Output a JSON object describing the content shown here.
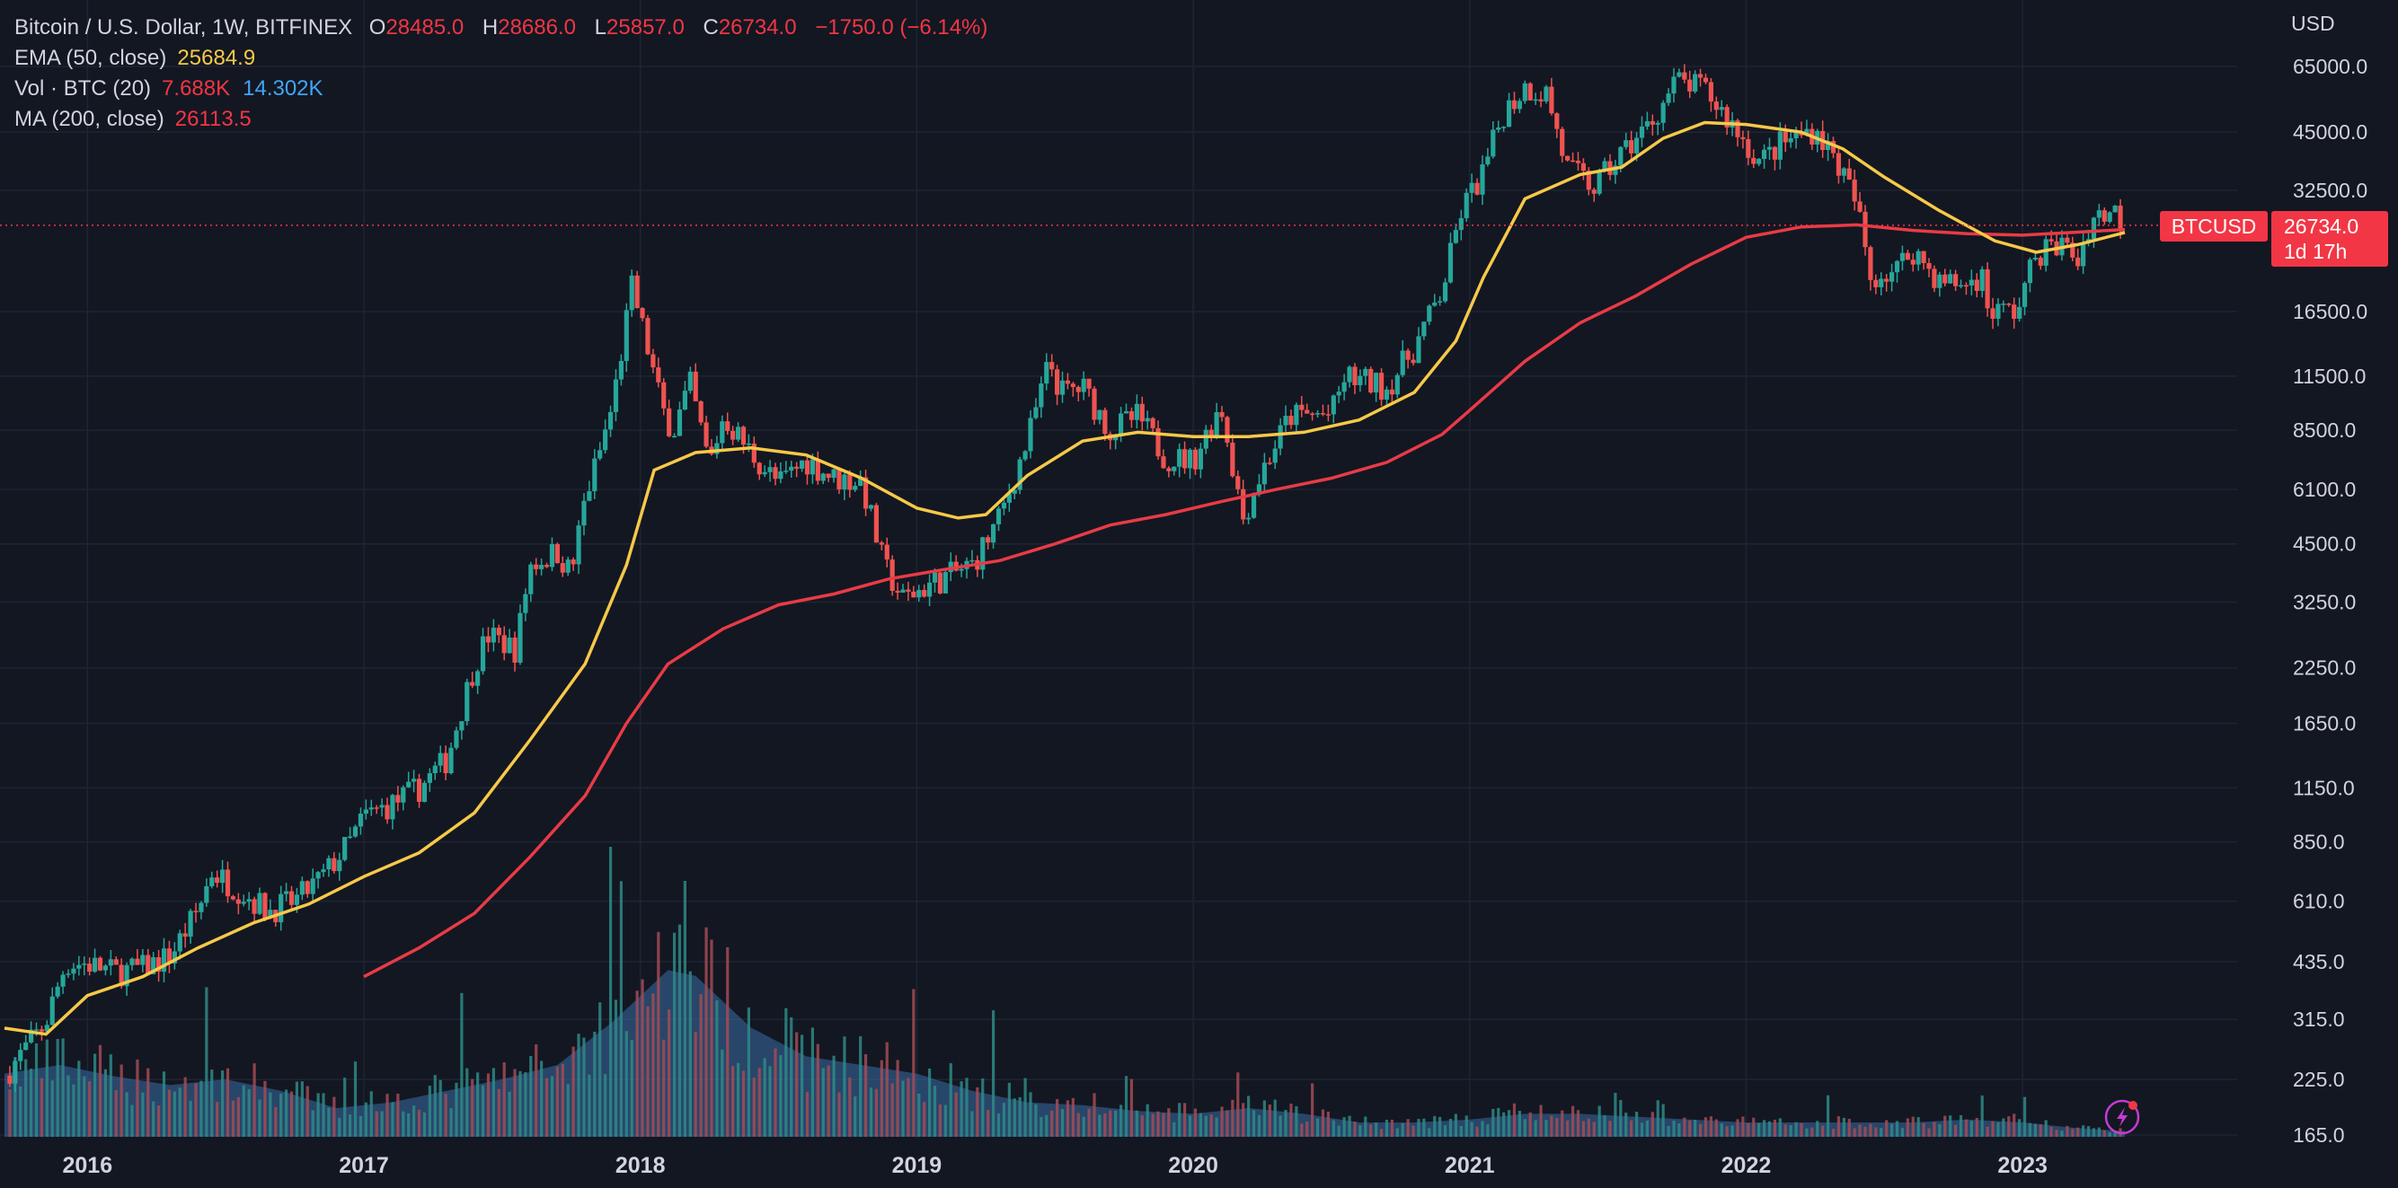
{
  "legend": {
    "title": "Bitcoin / U.S. Dollar, 1W, BITFINEX",
    "open_label": "O",
    "open": "28485.0",
    "high_label": "H",
    "high": "28686.0",
    "low_label": "L",
    "low": "25857.0",
    "close_label": "C",
    "close": "26734.0",
    "change": "−1750.0 (−6.14%)",
    "ema_label": "EMA (50, close)",
    "ema_value": "25684.9",
    "vol_label": "Vol · BTC (20)",
    "vol_value": "7.688K",
    "vol_ma_value": "14.302K",
    "ma_label": "MA (200, close)",
    "ma_value": "26113.5"
  },
  "price_scale": {
    "currency": "USD",
    "symbol_tag": "BTCUSD",
    "last_price": "26734.0",
    "countdown": "1d 17h"
  },
  "colors": {
    "background": "#131722",
    "grid": "#1f2433",
    "up": "#26a69a",
    "down": "#ef5350",
    "ema": "#f7c948",
    "ma": "#e83b46",
    "volume_ma": "#3a6ea5",
    "text": "#d1d4dc",
    "price_tag": "#f23645"
  },
  "icons": {
    "corner": "lightning-icon"
  },
  "chart_data": {
    "type": "candlestick",
    "symbol": "BTCUSD",
    "timeframe": "1W",
    "y_scale": "log",
    "y_ticks": [
      165,
      225,
      315,
      435,
      610,
      850,
      1150,
      1650,
      2250,
      3250,
      4500,
      6100,
      8500,
      11500,
      16500,
      32500,
      45000,
      65000
    ],
    "x_ticks": [
      "2016",
      "2017",
      "2018",
      "2019",
      "2020",
      "2021",
      "2022",
      "2023"
    ],
    "x_tick_years": [
      2016,
      2017,
      2018,
      2019,
      2020,
      2021,
      2022,
      2023
    ],
    "x_range": [
      2015.7,
      2023.37
    ],
    "grid": true,
    "approx_close_path": [
      [
        2015.7,
        230
      ],
      [
        2015.85,
        310
      ],
      [
        2015.92,
        430
      ],
      [
        2016.0,
        430
      ],
      [
        2016.1,
        410
      ],
      [
        2016.2,
        420
      ],
      [
        2016.3,
        450
      ],
      [
        2016.4,
        580
      ],
      [
        2016.45,
        720
      ],
      [
        2016.55,
        650
      ],
      [
        2016.65,
        580
      ],
      [
        2016.75,
        610
      ],
      [
        2016.85,
        700
      ],
      [
        2016.95,
        850
      ],
      [
        2017.0,
        980
      ],
      [
        2017.1,
        1050
      ],
      [
        2017.2,
        1150
      ],
      [
        2017.3,
        1350
      ],
      [
        2017.4,
        2300
      ],
      [
        2017.45,
        2700
      ],
      [
        2017.55,
        2500
      ],
      [
        2017.6,
        4000
      ],
      [
        2017.7,
        4300
      ],
      [
        2017.75,
        3800
      ],
      [
        2017.8,
        5800
      ],
      [
        2017.85,
        7400
      ],
      [
        2017.9,
        9800
      ],
      [
        2017.97,
        19000
      ],
      [
        2018.02,
        14000
      ],
      [
        2018.08,
        9500
      ],
      [
        2018.12,
        8500
      ],
      [
        2018.18,
        11000
      ],
      [
        2018.25,
        7000
      ],
      [
        2018.3,
        9200
      ],
      [
        2018.4,
        7500
      ],
      [
        2018.5,
        6300
      ],
      [
        2018.6,
        7200
      ],
      [
        2018.7,
        6500
      ],
      [
        2018.8,
        6400
      ],
      [
        2018.88,
        4000
      ],
      [
        2018.95,
        3300
      ],
      [
        2019.05,
        3600
      ],
      [
        2019.2,
        4000
      ],
      [
        2019.3,
        5200
      ],
      [
        2019.4,
        8000
      ],
      [
        2019.48,
        12500
      ],
      [
        2019.52,
        10500
      ],
      [
        2019.6,
        10800
      ],
      [
        2019.7,
        8500
      ],
      [
        2019.8,
        9200
      ],
      [
        2019.9,
        7300
      ],
      [
        2020.0,
        7200
      ],
      [
        2020.1,
        9800
      ],
      [
        2020.18,
        5200
      ],
      [
        2020.25,
        6800
      ],
      [
        2020.35,
        9200
      ],
      [
        2020.5,
        9300
      ],
      [
        2020.55,
        11500
      ],
      [
        2020.7,
        10800
      ],
      [
        2020.8,
        13500
      ],
      [
        2020.9,
        18500
      ],
      [
        2020.97,
        29000
      ],
      [
        2021.05,
        36000
      ],
      [
        2021.12,
        50000
      ],
      [
        2021.2,
        58000
      ],
      [
        2021.28,
        56000
      ],
      [
        2021.35,
        37000
      ],
      [
        2021.45,
        33000
      ],
      [
        2021.55,
        40000
      ],
      [
        2021.65,
        47000
      ],
      [
        2021.75,
        60000
      ],
      [
        2021.85,
        57000
      ],
      [
        2021.95,
        47000
      ],
      [
        2022.05,
        38000
      ],
      [
        2022.12,
        42000
      ],
      [
        2022.25,
        46000
      ],
      [
        2022.33,
        38000
      ],
      [
        2022.4,
        30000
      ],
      [
        2022.45,
        20000
      ],
      [
        2022.55,
        21000
      ],
      [
        2022.6,
        23500
      ],
      [
        2022.7,
        19500
      ],
      [
        2022.8,
        19200
      ],
      [
        2022.85,
        20500
      ],
      [
        2022.88,
        16500
      ],
      [
        2022.98,
        16600
      ],
      [
        2023.05,
        23000
      ],
      [
        2023.15,
        24000
      ],
      [
        2023.2,
        22000
      ],
      [
        2023.25,
        28000
      ],
      [
        2023.33,
        29000
      ],
      [
        2023.37,
        26734
      ]
    ],
    "ema_50_path": [
      [
        2015.7,
        300
      ],
      [
        2015.85,
        290
      ],
      [
        2016.0,
        360
      ],
      [
        2016.2,
        400
      ],
      [
        2016.4,
        470
      ],
      [
        2016.6,
        540
      ],
      [
        2016.8,
        600
      ],
      [
        2017.0,
        700
      ],
      [
        2017.2,
        800
      ],
      [
        2017.4,
        1000
      ],
      [
        2017.6,
        1500
      ],
      [
        2017.8,
        2300
      ],
      [
        2017.95,
        4000
      ],
      [
        2018.05,
        6800
      ],
      [
        2018.2,
        7500
      ],
      [
        2018.4,
        7700
      ],
      [
        2018.6,
        7400
      ],
      [
        2018.8,
        6500
      ],
      [
        2019.0,
        5500
      ],
      [
        2019.15,
        5200
      ],
      [
        2019.25,
        5300
      ],
      [
        2019.4,
        6600
      ],
      [
        2019.6,
        8000
      ],
      [
        2019.8,
        8400
      ],
      [
        2020.0,
        8200
      ],
      [
        2020.2,
        8200
      ],
      [
        2020.4,
        8400
      ],
      [
        2020.6,
        9000
      ],
      [
        2020.8,
        10500
      ],
      [
        2020.95,
        14000
      ],
      [
        2021.05,
        20000
      ],
      [
        2021.2,
        31000
      ],
      [
        2021.4,
        35500
      ],
      [
        2021.55,
        37000
      ],
      [
        2021.7,
        43500
      ],
      [
        2021.85,
        47500
      ],
      [
        2022.0,
        47000
      ],
      [
        2022.2,
        45000
      ],
      [
        2022.35,
        41000
      ],
      [
        2022.5,
        35000
      ],
      [
        2022.7,
        29000
      ],
      [
        2022.9,
        24500
      ],
      [
        2023.05,
        23000
      ],
      [
        2023.2,
        24000
      ],
      [
        2023.37,
        25685
      ]
    ],
    "ma_200_path": [
      [
        2017.0,
        400
      ],
      [
        2017.2,
        470
      ],
      [
        2017.4,
        570
      ],
      [
        2017.6,
        780
      ],
      [
        2017.8,
        1100
      ],
      [
        2017.95,
        1650
      ],
      [
        2018.1,
        2300
      ],
      [
        2018.3,
        2800
      ],
      [
        2018.5,
        3200
      ],
      [
        2018.7,
        3400
      ],
      [
        2018.9,
        3700
      ],
      [
        2019.1,
        3900
      ],
      [
        2019.3,
        4100
      ],
      [
        2019.5,
        4500
      ],
      [
        2019.7,
        5000
      ],
      [
        2019.9,
        5300
      ],
      [
        2020.1,
        5700
      ],
      [
        2020.3,
        6100
      ],
      [
        2020.5,
        6500
      ],
      [
        2020.7,
        7100
      ],
      [
        2020.9,
        8300
      ],
      [
        2021.0,
        9500
      ],
      [
        2021.2,
        12500
      ],
      [
        2021.4,
        15500
      ],
      [
        2021.6,
        18000
      ],
      [
        2021.8,
        21500
      ],
      [
        2022.0,
        25000
      ],
      [
        2022.2,
        26500
      ],
      [
        2022.4,
        26800
      ],
      [
        2022.6,
        26000
      ],
      [
        2022.8,
        25500
      ],
      [
        2023.0,
        25300
      ],
      [
        2023.37,
        26114
      ]
    ],
    "volume_ma_envelope": [
      [
        2015.7,
        0.22
      ],
      [
        2015.9,
        0.25
      ],
      [
        2016.1,
        0.21
      ],
      [
        2016.3,
        0.18
      ],
      [
        2016.5,
        0.2
      ],
      [
        2016.7,
        0.16
      ],
      [
        2016.9,
        0.1
      ],
      [
        2017.1,
        0.12
      ],
      [
        2017.3,
        0.16
      ],
      [
        2017.5,
        0.2
      ],
      [
        2017.7,
        0.25
      ],
      [
        2017.9,
        0.4
      ],
      [
        2018.1,
        0.58
      ],
      [
        2018.2,
        0.56
      ],
      [
        2018.4,
        0.38
      ],
      [
        2018.6,
        0.28
      ],
      [
        2018.8,
        0.25
      ],
      [
        2019.0,
        0.22
      ],
      [
        2019.2,
        0.16
      ],
      [
        2019.4,
        0.12
      ],
      [
        2019.6,
        0.11
      ],
      [
        2019.8,
        0.09
      ],
      [
        2020.0,
        0.08
      ],
      [
        2020.2,
        0.1
      ],
      [
        2020.4,
        0.08
      ],
      [
        2020.6,
        0.05
      ],
      [
        2020.8,
        0.05
      ],
      [
        2021.0,
        0.06
      ],
      [
        2021.2,
        0.08
      ],
      [
        2021.4,
        0.08
      ],
      [
        2021.6,
        0.07
      ],
      [
        2021.8,
        0.06
      ],
      [
        2022.0,
        0.05
      ],
      [
        2022.2,
        0.05
      ],
      [
        2022.4,
        0.05
      ],
      [
        2022.6,
        0.05
      ],
      [
        2022.8,
        0.06
      ],
      [
        2023.0,
        0.05
      ],
      [
        2023.2,
        0.03
      ],
      [
        2023.37,
        0.02
      ]
    ]
  }
}
